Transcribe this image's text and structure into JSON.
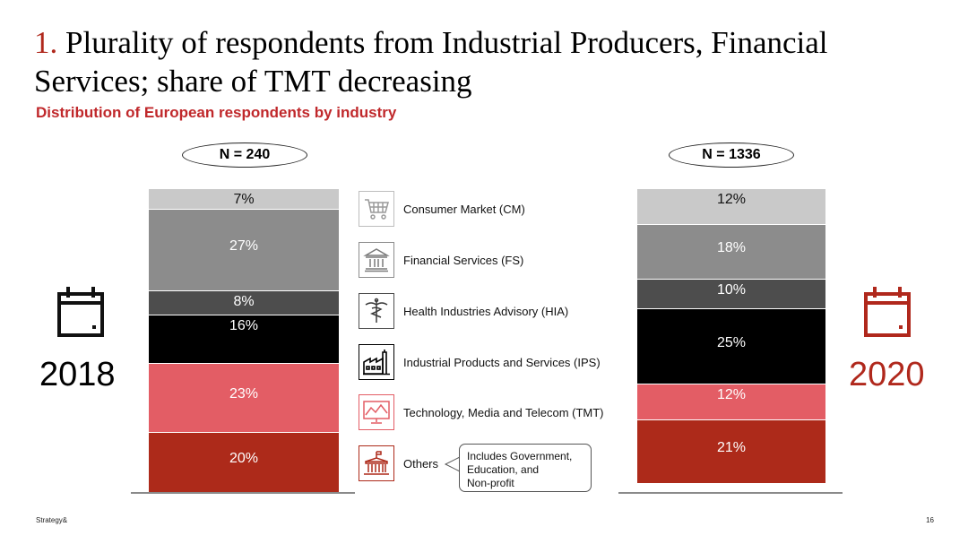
{
  "header": {
    "title_number": "1.",
    "title_text": "Plurality of respondents from Industrial Producers, Financial Services; share of TMT decreasing",
    "subtitle": "Distribution of European respondents by industry"
  },
  "colors": {
    "CM": "#c9c9c9",
    "FS": "#8c8c8c",
    "HIA": "#4d4d4d",
    "IPS": "#000000",
    "TMT": "#e35d65",
    "Others": "#ad2a1a",
    "accent_red": "#b0281c",
    "subtitle_red": "#c0282b"
  },
  "chart_data": {
    "type": "bar",
    "stacked": true,
    "categories": [
      "2018",
      "2020"
    ],
    "sample_sizes": [
      "N = 240",
      "N = 1336"
    ],
    "series": [
      {
        "name": "Consumer Market (CM)",
        "key": "CM",
        "values": [
          7,
          12
        ],
        "labels": [
          "7%",
          "12%"
        ]
      },
      {
        "name": "Financial Services (FS)",
        "key": "FS",
        "values": [
          27,
          18
        ],
        "labels": [
          "27%",
          "18%"
        ]
      },
      {
        "name": "Health Industries Advisory (HIA)",
        "key": "HIA",
        "values": [
          8,
          10
        ],
        "labels": [
          "8%",
          "10%"
        ]
      },
      {
        "name": "Industrial Products and Services (IPS)",
        "key": "IPS",
        "values": [
          16,
          25
        ],
        "labels": [
          "16%",
          "25%"
        ]
      },
      {
        "name": "Technology, Media and Telecom (TMT)",
        "key": "TMT",
        "values": [
          23,
          12
        ],
        "labels": [
          "23%",
          "12%"
        ]
      },
      {
        "name": "Others",
        "key": "Others",
        "values": [
          20,
          21
        ],
        "labels": [
          "20%",
          "21%"
        ]
      }
    ],
    "ylim": [
      0,
      101
    ],
    "title": "",
    "xlabel": "",
    "ylabel": ""
  },
  "legend": {
    "items": [
      {
        "label": "Consumer Market (CM)",
        "icon": "shopping-cart-icon"
      },
      {
        "label": "Financial Services (FS)",
        "icon": "bank-icon"
      },
      {
        "label": "Health Industries Advisory (HIA)",
        "icon": "caduceus-icon"
      },
      {
        "label": "Industrial Products and Services (IPS)",
        "icon": "factory-icon"
      },
      {
        "label": "Technology, Media and Telecom (TMT)",
        "icon": "monitor-chart-icon"
      },
      {
        "label": "Others",
        "icon": "government-building-icon"
      }
    ]
  },
  "callout": {
    "lines": [
      "Includes Government,",
      "Education, and",
      "Non-profit"
    ]
  },
  "years": {
    "left": "2018",
    "right": "2020"
  },
  "footer": {
    "brand": "Strategy&",
    "page": "16"
  }
}
